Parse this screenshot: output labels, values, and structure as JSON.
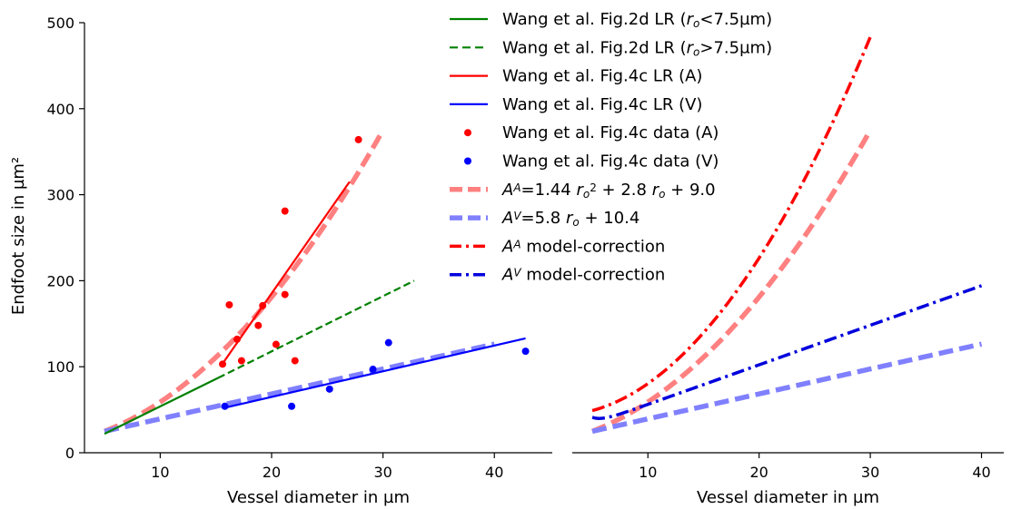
{
  "chart_data": [
    {
      "type": "line",
      "panel": "left",
      "xlabel": "Vessel diameter in µm",
      "ylabel": "Endfoot size in µm²",
      "xlim": [
        3.2,
        45.2
      ],
      "ylim": [
        0,
        500
      ],
      "xticks": [
        10,
        20,
        30,
        40
      ],
      "yticks": [
        0,
        100,
        200,
        300,
        400,
        500
      ],
      "legend_position": "top-right",
      "series": [
        {
          "id": "wang2d_small",
          "color": "#008000",
          "style": "solid",
          "x": [
            5,
            15.2
          ],
          "y": [
            22,
            87
          ]
        },
        {
          "id": "wang2d_large",
          "color": "#008000",
          "style": "dashed",
          "x": [
            15.2,
            32.8
          ],
          "y": [
            87,
            200
          ]
        },
        {
          "id": "wang4c_a_lr",
          "color": "#ff0000",
          "style": "solid",
          "x": [
            15.4,
            27
          ],
          "y": [
            100,
            315
          ]
        },
        {
          "id": "wang4c_v_lr",
          "color": "#0000ff",
          "style": "solid",
          "x": [
            15.7,
            42.8
          ],
          "y": [
            52,
            133
          ]
        },
        {
          "id": "data_a",
          "color": "#ff0000",
          "style": "points",
          "x": [
            15.6,
            16.2,
            16.9,
            17.3,
            18.8,
            19.2,
            20.4,
            21.2,
            21.2,
            22.1,
            27.8
          ],
          "y": [
            103,
            172,
            132,
            107,
            148,
            171,
            126,
            281,
            184,
            107,
            364
          ]
        },
        {
          "id": "data_v",
          "color": "#0000ff",
          "style": "points",
          "x": [
            15.8,
            21.8,
            25.2,
            29.1,
            30.5,
            42.8
          ],
          "y": [
            54,
            54,
            74,
            97,
            128,
            118
          ]
        },
        {
          "id": "fit_a",
          "color": "#ff8080",
          "style": "thick-dashed",
          "func": "fitA",
          "x_range": [
            5,
            30
          ]
        },
        {
          "id": "fit_v",
          "color": "#8080ff",
          "style": "thick-dashed",
          "func": "fitV",
          "x_range": [
            5,
            40
          ]
        }
      ]
    },
    {
      "type": "line",
      "panel": "right",
      "xlabel": "Vessel diameter in µm",
      "xlim": [
        3.2,
        42.0
      ],
      "ylim": [
        0,
        500
      ],
      "xticks": [
        10,
        20,
        30,
        40
      ],
      "series": [
        {
          "id": "fit_a",
          "color": "#ff8080",
          "style": "thick-dashed",
          "func": "fitA",
          "x_range": [
            5,
            30
          ]
        },
        {
          "id": "fit_v",
          "color": "#8080ff",
          "style": "thick-dashed",
          "func": "fitV",
          "x_range": [
            5,
            40
          ]
        },
        {
          "id": "corr_a",
          "color": "#ff0000",
          "style": "dashdot",
          "func": "corrA",
          "x_range": [
            5,
            30
          ]
        },
        {
          "id": "corr_v",
          "color": "#0000dd",
          "style": "dashdot",
          "func": "corrV",
          "x_range": [
            5,
            40
          ]
        }
      ]
    }
  ],
  "legend": [
    {
      "id": "wang2d_small",
      "style": "solid",
      "color": "#008000",
      "parts": [
        {
          "t": "Wang et al. Fig.2d LR ("
        },
        {
          "t": "r",
          "it": true
        },
        {
          "t": "o",
          "it": true,
          "sub": true
        },
        {
          "t": "<7.5µm)"
        }
      ]
    },
    {
      "id": "wang2d_large",
      "style": "dashed",
      "color": "#008000",
      "parts": [
        {
          "t": "Wang et al. Fig.2d LR ("
        },
        {
          "t": "r",
          "it": true
        },
        {
          "t": "o",
          "it": true,
          "sub": true
        },
        {
          "t": ">7.5µm)"
        }
      ]
    },
    {
      "id": "wang4c_a_lr",
      "style": "solid",
      "color": "#ff0000",
      "parts": [
        {
          "t": "Wang et al. Fig.4c LR (A)"
        }
      ]
    },
    {
      "id": "wang4c_v_lr",
      "style": "solid",
      "color": "#0000ff",
      "parts": [
        {
          "t": "Wang et al. Fig.4c LR (V)"
        }
      ]
    },
    {
      "id": "data_a",
      "style": "points",
      "color": "#ff0000",
      "parts": [
        {
          "t": "Wang et al. Fig.4c data (A)"
        }
      ]
    },
    {
      "id": "data_v",
      "style": "points",
      "color": "#0000ff",
      "parts": [
        {
          "t": "Wang et al. Fig.4c data (V)"
        }
      ]
    },
    {
      "id": "fit_a",
      "style": "thick-dashed",
      "color": "#ff8080",
      "parts": [
        {
          "t": "A",
          "it": true
        },
        {
          "t": "A",
          "it": true,
          "sup": true
        },
        {
          "t": "=1.44 "
        },
        {
          "t": "r",
          "it": true
        },
        {
          "t": "o",
          "it": true,
          "sub": true
        },
        {
          "t": "2",
          "sup": true
        },
        {
          "t": " + 2.8 "
        },
        {
          "t": "r",
          "it": true
        },
        {
          "t": "o",
          "it": true,
          "sub": true
        },
        {
          "t": " + 9.0"
        }
      ]
    },
    {
      "id": "fit_v",
      "style": "thick-dashed",
      "color": "#8080ff",
      "parts": [
        {
          "t": "A",
          "it": true
        },
        {
          "t": "V",
          "it": true,
          "sup": true
        },
        {
          "t": "=5.8 "
        },
        {
          "t": "r",
          "it": true
        },
        {
          "t": "o",
          "it": true,
          "sub": true
        },
        {
          "t": " + 10.4"
        }
      ]
    },
    {
      "id": "corr_a",
      "style": "dashdot",
      "color": "#ff0000",
      "parts": [
        {
          "t": "A",
          "it": true
        },
        {
          "t": "A",
          "it": true,
          "sup": true
        },
        {
          "t": " model-correction"
        }
      ]
    },
    {
      "id": "corr_v",
      "style": "dashdot",
      "color": "#0000dd",
      "parts": [
        {
          "t": "A",
          "it": true
        },
        {
          "t": "V",
          "it": true,
          "sup": true
        },
        {
          "t": " model-correction"
        }
      ]
    }
  ]
}
